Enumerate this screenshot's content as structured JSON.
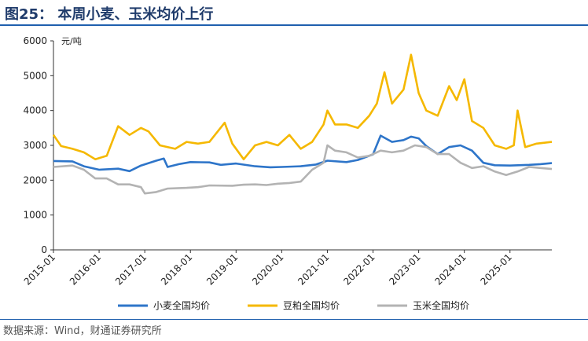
{
  "header": {
    "title": "图25：    本周小麦、玉米均价上行"
  },
  "footer": {
    "source": "数据来源：Wind，财通证券研究所"
  },
  "chart_data": {
    "type": "line",
    "ylabel": "元/吨",
    "ylim": [
      0,
      6000
    ],
    "yticks": [
      0,
      1000,
      2000,
      3000,
      4000,
      5000,
      6000
    ],
    "xlim": [
      "2015-01",
      "2025-12"
    ],
    "xticks": [
      "2015-01",
      "2016-01",
      "2017-01",
      "2018-01",
      "2019-01",
      "2020-01",
      "2021-01",
      "2022-01",
      "2023-01",
      "2024-01",
      "2025-01"
    ],
    "legend_position": "bottom",
    "grid": false,
    "series": [
      {
        "name": "小麦全国均价",
        "color": "#2e75c9",
        "points": [
          [
            "2015-01",
            2550
          ],
          [
            "2015-06",
            2540
          ],
          [
            "2015-09",
            2400
          ],
          [
            "2016-01",
            2300
          ],
          [
            "2016-06",
            2330
          ],
          [
            "2016-09",
            2260
          ],
          [
            "2016-12",
            2420
          ],
          [
            "2017-04",
            2560
          ],
          [
            "2017-06",
            2620
          ],
          [
            "2017-07",
            2380
          ],
          [
            "2017-10",
            2460
          ],
          [
            "2018-01",
            2520
          ],
          [
            "2018-06",
            2510
          ],
          [
            "2018-09",
            2440
          ],
          [
            "2019-01",
            2480
          ],
          [
            "2019-06",
            2400
          ],
          [
            "2019-10",
            2370
          ],
          [
            "2020-01",
            2380
          ],
          [
            "2020-06",
            2400
          ],
          [
            "2020-10",
            2450
          ],
          [
            "2021-01",
            2560
          ],
          [
            "2021-06",
            2520
          ],
          [
            "2021-09",
            2580
          ],
          [
            "2022-01",
            2740
          ],
          [
            "2022-03",
            3280
          ],
          [
            "2022-06",
            3100
          ],
          [
            "2022-09",
            3150
          ],
          [
            "2022-11",
            3250
          ],
          [
            "2023-01",
            3200
          ],
          [
            "2023-03",
            2980
          ],
          [
            "2023-06",
            2750
          ],
          [
            "2023-09",
            2950
          ],
          [
            "2023-12",
            3000
          ],
          [
            "2024-03",
            2850
          ],
          [
            "2024-06",
            2500
          ],
          [
            "2024-09",
            2430
          ],
          [
            "2025-01",
            2420
          ],
          [
            "2025-06",
            2440
          ],
          [
            "2025-09",
            2460
          ],
          [
            "2025-12",
            2490
          ]
        ]
      },
      {
        "name": "豆粕全国均价",
        "color": "#f5b800",
        "points": [
          [
            "2015-01",
            3300
          ],
          [
            "2015-03",
            2980
          ],
          [
            "2015-06",
            2900
          ],
          [
            "2015-09",
            2800
          ],
          [
            "2015-12",
            2600
          ],
          [
            "2016-03",
            2700
          ],
          [
            "2016-06",
            3550
          ],
          [
            "2016-09",
            3300
          ],
          [
            "2016-12",
            3500
          ],
          [
            "2017-02",
            3400
          ],
          [
            "2017-05",
            3000
          ],
          [
            "2017-09",
            2900
          ],
          [
            "2017-12",
            3100
          ],
          [
            "2018-03",
            3050
          ],
          [
            "2018-06",
            3100
          ],
          [
            "2018-10",
            3650
          ],
          [
            "2018-12",
            3050
          ],
          [
            "2019-03",
            2600
          ],
          [
            "2019-06",
            3000
          ],
          [
            "2019-09",
            3100
          ],
          [
            "2019-12",
            3000
          ],
          [
            "2020-03",
            3300
          ],
          [
            "2020-06",
            2900
          ],
          [
            "2020-09",
            3100
          ],
          [
            "2020-12",
            3600
          ],
          [
            "2021-01",
            4000
          ],
          [
            "2021-03",
            3600
          ],
          [
            "2021-06",
            3600
          ],
          [
            "2021-09",
            3500
          ],
          [
            "2021-12",
            3850
          ],
          [
            "2022-02",
            4200
          ],
          [
            "2022-04",
            5100
          ],
          [
            "2022-06",
            4200
          ],
          [
            "2022-09",
            4600
          ],
          [
            "2022-11",
            5600
          ],
          [
            "2023-01",
            4500
          ],
          [
            "2023-03",
            4000
          ],
          [
            "2023-06",
            3850
          ],
          [
            "2023-09",
            4700
          ],
          [
            "2023-11",
            4300
          ],
          [
            "2024-01",
            4900
          ],
          [
            "2024-03",
            3700
          ],
          [
            "2024-06",
            3500
          ],
          [
            "2024-09",
            3000
          ],
          [
            "2024-12",
            2900
          ],
          [
            "2025-02",
            3000
          ],
          [
            "2025-03",
            4000
          ],
          [
            "2025-05",
            2950
          ],
          [
            "2025-08",
            3050
          ],
          [
            "2025-12",
            3100
          ]
        ]
      },
      {
        "name": "玉米全国均价",
        "color": "#b3b3b3",
        "points": [
          [
            "2015-01",
            2380
          ],
          [
            "2015-06",
            2420
          ],
          [
            "2015-09",
            2300
          ],
          [
            "2015-12",
            2050
          ],
          [
            "2016-03",
            2050
          ],
          [
            "2016-06",
            1880
          ],
          [
            "2016-09",
            1880
          ],
          [
            "2016-12",
            1800
          ],
          [
            "2017-01",
            1620
          ],
          [
            "2017-04",
            1660
          ],
          [
            "2017-07",
            1760
          ],
          [
            "2017-12",
            1780
          ],
          [
            "2018-03",
            1800
          ],
          [
            "2018-06",
            1850
          ],
          [
            "2018-12",
            1840
          ],
          [
            "2019-03",
            1870
          ],
          [
            "2019-06",
            1880
          ],
          [
            "2019-09",
            1860
          ],
          [
            "2019-12",
            1900
          ],
          [
            "2020-03",
            1920
          ],
          [
            "2020-06",
            1960
          ],
          [
            "2020-09",
            2300
          ],
          [
            "2020-12",
            2500
          ],
          [
            "2021-01",
            3000
          ],
          [
            "2021-03",
            2850
          ],
          [
            "2021-06",
            2800
          ],
          [
            "2021-09",
            2650
          ],
          [
            "2021-12",
            2700
          ],
          [
            "2022-03",
            2850
          ],
          [
            "2022-06",
            2800
          ],
          [
            "2022-09",
            2850
          ],
          [
            "2022-12",
            3000
          ],
          [
            "2023-03",
            2950
          ],
          [
            "2023-06",
            2750
          ],
          [
            "2023-09",
            2750
          ],
          [
            "2023-12",
            2500
          ],
          [
            "2024-03",
            2350
          ],
          [
            "2024-06",
            2400
          ],
          [
            "2024-09",
            2250
          ],
          [
            "2024-12",
            2150
          ],
          [
            "2025-03",
            2250
          ],
          [
            "2025-06",
            2380
          ],
          [
            "2025-09",
            2350
          ],
          [
            "2025-12",
            2320
          ]
        ]
      }
    ]
  }
}
